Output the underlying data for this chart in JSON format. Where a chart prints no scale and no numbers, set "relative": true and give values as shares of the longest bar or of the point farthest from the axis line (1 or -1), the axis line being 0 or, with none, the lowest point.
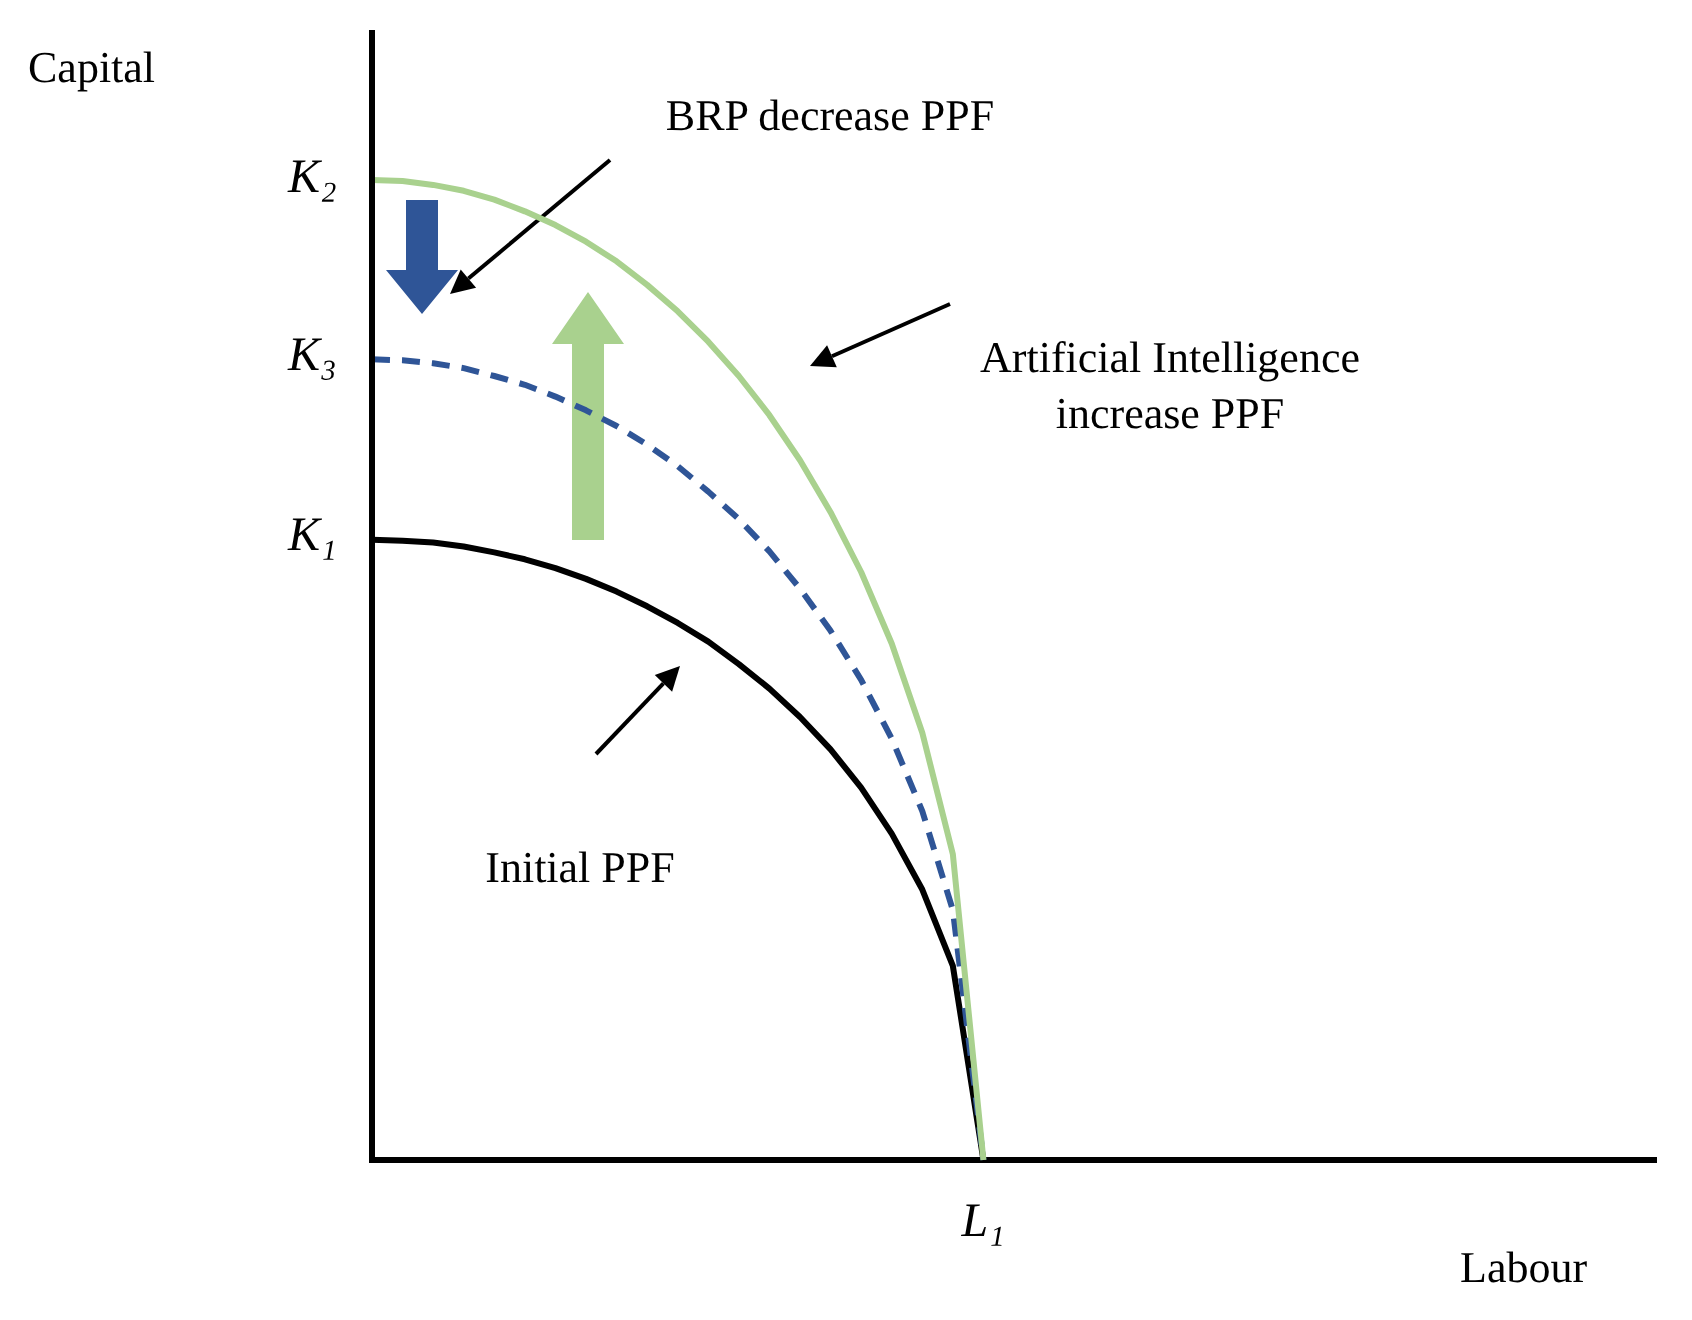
{
  "chart_data": {
    "type": "line",
    "xlabel": "Labour",
    "relative": true,
    "legend": false,
    "marker": "none",
    "categories": [
      null,
      null,
      null,
      null,
      null,
      null,
      null,
      null,
      null,
      null,
      null,
      null,
      null,
      null,
      null,
      null,
      null,
      null,
      null,
      null,
      null,
      null,
      null,
      null,
      null,
      null,
      null,
      null,
      null,
      null,
      null,
      null,
      null,
      null,
      null,
      null,
      null,
      null,
      null,
      null,
      null,
      null,
      null
    ],
    "series": [
      {
        "color": "#a9d18e",
        "line_style": "solid",
        "values": [
          1,
          0.999,
          0.995,
          0.989,
          0.98,
          0.968,
          0.954,
          0.937,
          0.917,
          0.893,
          0.866,
          0.835,
          0.8,
          0.76,
          0.714,
          0.661,
          0.6,
          0.527,
          0.436,
          0.312,
          0,
          null,
          null,
          null,
          null,
          null,
          null,
          null,
          null,
          null,
          null,
          null,
          null,
          null,
          null,
          null,
          null,
          null,
          null,
          null,
          null,
          null,
          null
        ]
      },
      {
        "color": "#2f5597",
        "line_style": "dashed",
        "values": [
          0.817,
          0.816,
          0.813,
          0.808,
          0.8,
          0.791,
          0.779,
          0.765,
          0.749,
          0.73,
          0.708,
          0.682,
          0.654,
          0.621,
          0.583,
          0.54,
          0.49,
          0.43,
          0.356,
          0.255,
          0,
          null,
          null,
          null,
          null,
          null,
          null,
          null,
          null,
          null,
          null,
          null,
          null,
          null,
          null,
          null,
          null,
          null,
          null,
          null,
          null,
          null,
          null
        ]
      },
      {
        "color": "#000000",
        "line_style": "solid",
        "values": [
          0.633,
          0.632,
          0.63,
          0.626,
          0.62,
          0.613,
          0.604,
          0.593,
          0.58,
          0.565,
          0.548,
          0.529,
          0.506,
          0.481,
          0.452,
          0.419,
          0.38,
          0.333,
          0.276,
          0.198,
          0,
          null,
          null,
          null,
          null,
          null,
          null,
          null,
          null,
          null,
          null,
          null,
          null,
          null,
          null,
          null,
          null,
          null,
          null,
          null,
          null,
          null,
          null
        ]
      }
    ],
    "annotations": [
      "BRP decrease PPF",
      "Artificial Intelligence increase PPF",
      "Initial PPF",
      "K₂",
      "K₃",
      "K₁",
      "Capital",
      {
        "text": "L₁",
        "y": 0
      }
    ]
  }
}
